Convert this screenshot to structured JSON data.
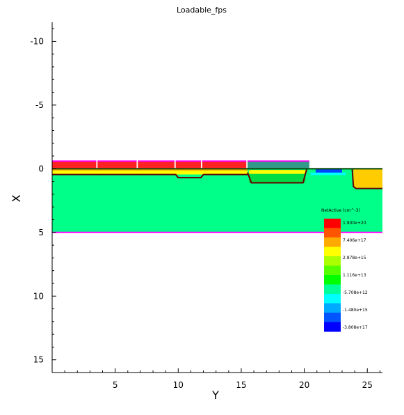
{
  "chart_data": {
    "type": "heatmap",
    "title": "Loadable_fps",
    "xlabel": "Y",
    "ylabel": "X",
    "xlim": [
      0,
      26.2
    ],
    "ylim": [
      16,
      -11.5
    ],
    "y_axis_inverted": true,
    "x_ticks": [
      5,
      10,
      15,
      20,
      25
    ],
    "y_ticks": [
      -10,
      -5,
      0,
      5,
      10,
      15
    ],
    "x_tick_labels": [
      "5",
      "10",
      "15",
      "20",
      "25"
    ],
    "y_tick_labels": [
      "-10",
      "-5",
      "0",
      "5",
      "10",
      "15"
    ],
    "substrate_bottom": 5,
    "colorbar": {
      "title": "NetActive (cm^-3)",
      "labels": [
        "1.900e+20",
        "7.406e+17",
        "2.878e+15",
        "1.116e+13",
        "-5.708e+12",
        "-1.480e+15",
        "-3.808e+17"
      ],
      "colors": [
        "#ff0000",
        "#ff5500",
        "#ffaa00",
        "#ffff00",
        "#aaff00",
        "#55ff00",
        "#00ff00",
        "#00ff99",
        "#00ffff",
        "#00aaff",
        "#0055ff",
        "#0000ff"
      ]
    },
    "regions": {
      "substrate": "#00ff88",
      "oxide": "#ff00ff",
      "poly": "#ff2222",
      "deep_n": "#00dd44",
      "p_implant": "#0044ff"
    }
  }
}
